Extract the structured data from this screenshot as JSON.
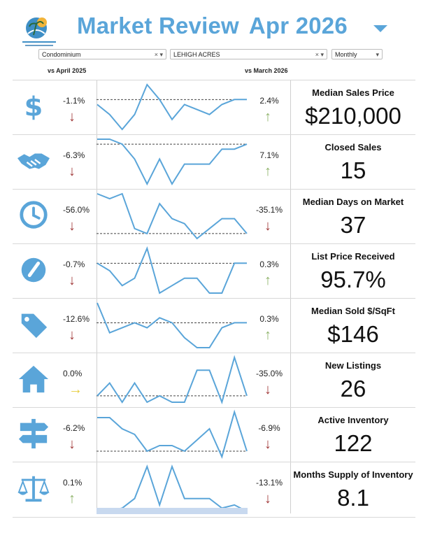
{
  "header": {
    "title": "Market Review",
    "period": "Apr 2026",
    "logo_name": "sun-palm-logo"
  },
  "filters": {
    "property_type": "Condominium",
    "area": "LEHIGH ACRES",
    "interval": "Monthly",
    "clear_glyph": "×",
    "open_glyph": "▾"
  },
  "comparisons": {
    "year_label": "vs April 2025",
    "month_label": "vs March 2026"
  },
  "colors": {
    "accent": "#5aa5d9",
    "down": "#a23b3b",
    "up": "#8fb36a",
    "flat": "#e6cc3b",
    "spark": "#5aa5d9"
  },
  "metrics": [
    {
      "name": "Median Sales Price",
      "value": "$210,000",
      "yoy": "-1.1%",
      "yoy_dir": "down",
      "mom": "2.4%",
      "mom_dir": "up",
      "icon": "dollar-sign-icon",
      "spark": [
        6,
        4,
        1,
        4,
        10,
        7,
        3,
        6,
        5,
        4,
        6,
        7,
        7
      ],
      "ref": 7
    },
    {
      "name": "Closed Sales",
      "value": "15",
      "yoy": "-6.3%",
      "yoy_dir": "down",
      "mom": "7.1%",
      "mom_dir": "up",
      "icon": "handshake-icon",
      "spark": [
        10,
        10,
        9,
        6,
        1,
        6,
        1,
        5,
        5,
        5,
        8,
        8,
        9
      ],
      "ref": 9
    },
    {
      "name": "Median Days on Market",
      "value": "37",
      "yoy": "-56.0%",
      "yoy_dir": "down",
      "mom": "-35.1%",
      "mom_dir": "down",
      "icon": "clock-icon",
      "spark": [
        10,
        9,
        10,
        3,
        2,
        8,
        5,
        4,
        1,
        3,
        5,
        5,
        2
      ],
      "ref": 2
    },
    {
      "name": "List Price Received",
      "value": "95.7%",
      "yoy": "-0.7%",
      "yoy_dir": "down",
      "mom": "0.3%",
      "mom_dir": "up",
      "icon": "speedometer-icon",
      "spark": [
        5,
        4,
        2,
        3,
        7,
        1,
        2,
        3,
        3,
        1,
        1,
        5,
        5
      ],
      "ref": 5
    },
    {
      "name": "Median Sold $/SqFt",
      "value": "$146",
      "yoy": "-12.6%",
      "yoy_dir": "down",
      "mom": "0.3%",
      "mom_dir": "up",
      "icon": "price-tag-icon",
      "spark": [
        10,
        4,
        5,
        6,
        5,
        7,
        6,
        3,
        1,
        1,
        5,
        6,
        6
      ],
      "ref": 6
    },
    {
      "name": "New Listings",
      "value": "26",
      "yoy": "0.0%",
      "yoy_dir": "flat",
      "mom": "-35.0%",
      "mom_dir": "down",
      "icon": "house-icon",
      "spark": [
        3,
        5,
        2,
        5,
        2,
        3,
        2,
        2,
        7,
        7,
        2,
        9,
        3
      ],
      "ref": 3
    },
    {
      "name": "Active Inventory",
      "value": "122",
      "yoy": "-6.2%",
      "yoy_dir": "down",
      "mom": "-6.9%",
      "mom_dir": "down",
      "icon": "signpost-icon",
      "spark": [
        8,
        8,
        6,
        5,
        2,
        3,
        3,
        2,
        4,
        6,
        1,
        9,
        2
      ],
      "ref": 2
    },
    {
      "name": "Months Supply of Inventory",
      "value": "8.1",
      "yoy": "0.1%",
      "yoy_dir": "up",
      "mom": "-13.1%",
      "mom_dir": "down",
      "icon": "balance-scale-icon",
      "spark": [
        1,
        1,
        1.5,
        3,
        8,
        2,
        8,
        3,
        3,
        3,
        1.5,
        2,
        1
      ],
      "ref": 1
    }
  ]
}
